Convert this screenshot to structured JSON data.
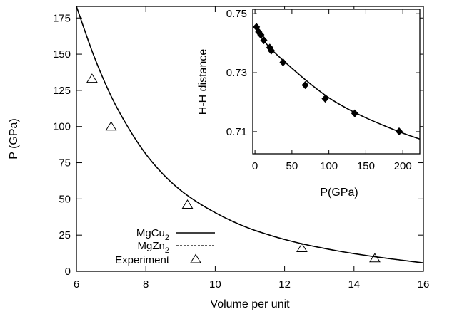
{
  "chart_data": [
    {
      "type": "line",
      "xlabel": "Volume per unit",
      "ylabel": "P (GPa)",
      "xlim": [
        6,
        16
      ],
      "ylim": [
        0,
        183
      ],
      "xticks": [
        "6",
        "8",
        "10",
        "12",
        "14",
        "16"
      ],
      "yticks": [
        "0",
        "25",
        "50",
        "75",
        "100",
        "125",
        "150",
        "175"
      ],
      "grid": false,
      "legend_position": "bottom-left",
      "series": [
        {
          "name": "MgCu2",
          "legend_base": "MgCu",
          "legend_sub": "2",
          "style": "solid",
          "x": [
            6.0,
            6.5,
            7.0,
            7.5,
            8.0,
            8.5,
            9.0,
            9.5,
            10.0,
            10.5,
            11.0,
            11.5,
            12.0,
            12.5,
            13.0,
            13.5,
            14.0,
            14.5,
            15.0,
            15.5,
            16.0
          ],
          "y": [
            183,
            149,
            121,
            99,
            81,
            67,
            56,
            47.5,
            40.5,
            34.5,
            29.5,
            25.5,
            22,
            19,
            16.5,
            14.2,
            12.2,
            10.4,
            8.8,
            7.3,
            5.8
          ]
        },
        {
          "name": "MgZn2",
          "legend_base": "MgZn",
          "legend_sub": "2",
          "style": "dashed",
          "x": [
            6.0,
            6.5,
            7.0,
            7.5,
            8.0,
            8.5,
            9.0,
            9.5,
            10.0,
            10.5,
            11.0,
            11.5,
            12.0,
            12.5,
            13.0,
            13.5,
            14.0,
            14.5,
            15.0,
            15.5,
            16.0
          ],
          "y": [
            183,
            149,
            121,
            99,
            81,
            67,
            56,
            47.5,
            40.5,
            34.5,
            29.5,
            25.5,
            22,
            19,
            16.5,
            14.2,
            12.2,
            10.4,
            8.8,
            7.3,
            5.8
          ]
        },
        {
          "name": "Experiment",
          "style": "triangle-markers",
          "x": [
            6.45,
            7.0,
            9.2,
            12.5,
            14.6
          ],
          "y": [
            133,
            100,
            46,
            16,
            9
          ]
        }
      ]
    },
    {
      "type": "line",
      "xlabel": "P(GPa)",
      "ylabel": "H-H distance",
      "xlim": [
        -3,
        223
      ],
      "ylim": [
        0.7025,
        0.7515
      ],
      "xticks": [
        "0",
        "50",
        "100",
        "150",
        "200"
      ],
      "yticks": [
        "0.71",
        "0.73",
        "0.75"
      ],
      "grid": false,
      "series": [
        {
          "style": "solid",
          "x": [
            0,
            10,
            25,
            50,
            75,
            100,
            125,
            150,
            175,
            200,
            223
          ],
          "y": [
            0.7455,
            0.7415,
            0.7372,
            0.7315,
            0.7262,
            0.7215,
            0.7178,
            0.7147,
            0.712,
            0.7095,
            0.7075
          ]
        },
        {
          "style": "filled-markers",
          "x": [
            2,
            5,
            8,
            12,
            20,
            22,
            38,
            68,
            95,
            135,
            195
          ],
          "y": [
            0.7455,
            0.7438,
            0.7428,
            0.741,
            0.7385,
            0.7375,
            0.7335,
            0.7258,
            0.7212,
            0.7162,
            0.7101
          ]
        }
      ]
    }
  ]
}
